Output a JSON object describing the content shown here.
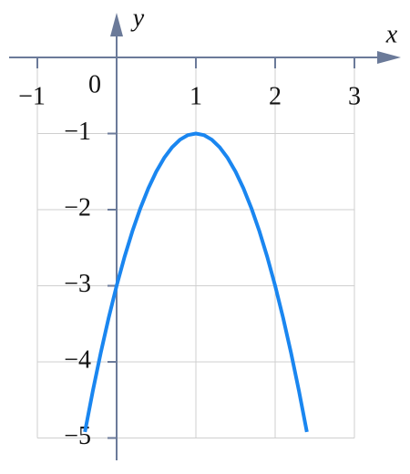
{
  "chart_data": {
    "type": "line",
    "x_label": "x",
    "y_label": "y",
    "x": [
      -0.4,
      -0.3,
      -0.2,
      -0.1,
      0,
      0.1,
      0.2,
      0.3,
      0.4,
      0.5,
      0.6,
      0.7,
      0.8,
      0.9,
      1,
      1.1,
      1.2,
      1.3,
      1.4,
      1.5,
      1.6,
      1.7,
      1.8,
      1.9,
      2,
      2.1,
      2.2,
      2.3,
      2.4
    ],
    "values": [
      -4.92,
      -4.38,
      -3.88,
      -3.42,
      -3,
      -2.62,
      -2.28,
      -1.98,
      -1.72,
      -1.5,
      -1.32,
      -1.18,
      -1.08,
      -1.02,
      -1,
      -1.02,
      -1.08,
      -1.18,
      -1.32,
      -1.5,
      -1.72,
      -1.98,
      -2.28,
      -2.62,
      -3,
      -3.42,
      -3.88,
      -4.38,
      -4.92
    ],
    "color": "#1a86f0",
    "xlim": [
      -1,
      3
    ],
    "ylim": [
      -5,
      0
    ],
    "xticks": [
      {
        "value": -1,
        "label": "−1"
      },
      0,
      1,
      2,
      3
    ],
    "yticks": [
      {
        "value": -1,
        "label": "−1"
      },
      {
        "value": -2,
        "label": "−2"
      },
      {
        "value": -3,
        "label": "−3"
      },
      {
        "value": -4,
        "label": "−4"
      },
      {
        "value": -5,
        "label": "−5"
      }
    ],
    "grid": true
  }
}
